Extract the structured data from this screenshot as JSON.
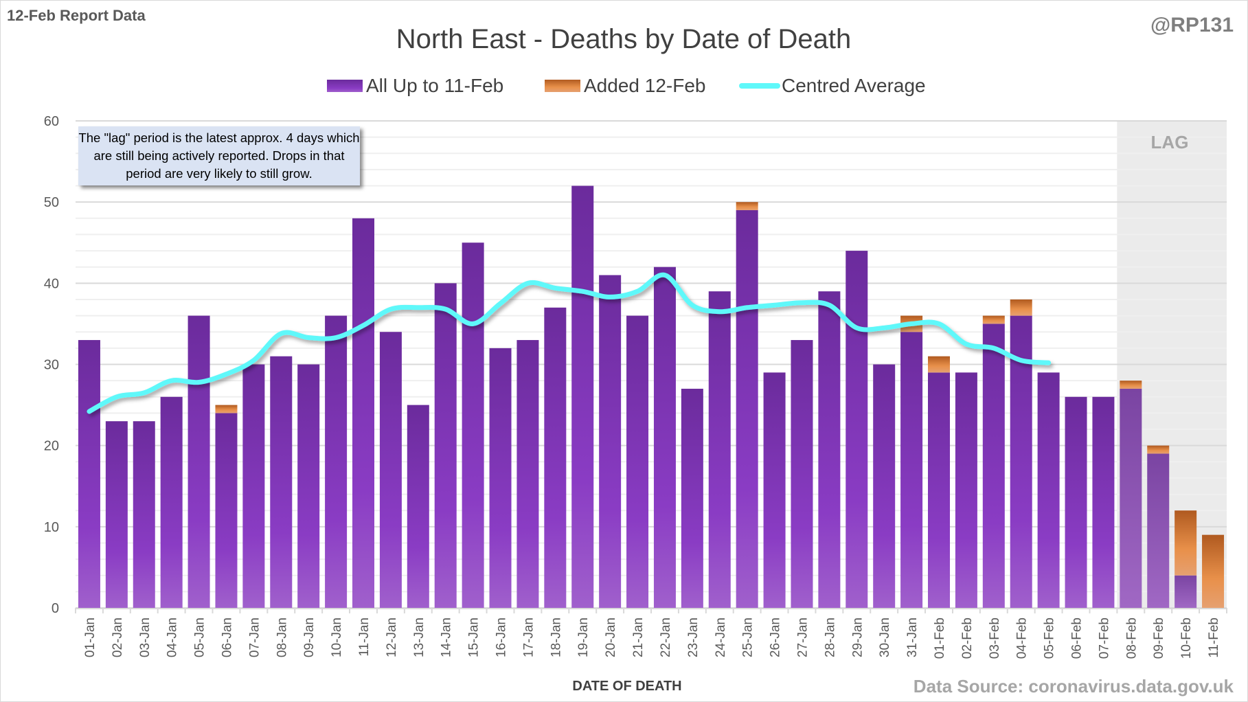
{
  "header_left": "12-Feb Report Data",
  "header_right": "@RP131",
  "footer_source": "Data Source: coronavirus.data.gov.uk",
  "note": "The \"lag\" period is the latest approx. 4 days which are still being actively reported.  Drops in that period are very likely to still grow.",
  "lag_label": "LAG",
  "colors": {
    "all": "#7b2fb5",
    "added": "#e0803a",
    "average": "#5ff8fa",
    "lag_shade": "#ebebeb",
    "note_bg": "#dae3f3"
  },
  "chart_data": {
    "type": "bar",
    "stacked": true,
    "title": "North East - Deaths by Date of Death",
    "xlabel": "DATE OF DEATH",
    "ylabel": "",
    "ylim": [
      0,
      60
    ],
    "yticks": [
      0,
      10,
      20,
      30,
      40,
      50,
      60
    ],
    "grid": true,
    "legend_placement": "top",
    "categories": [
      "01-Jan",
      "02-Jan",
      "03-Jan",
      "04-Jan",
      "05-Jan",
      "06-Jan",
      "07-Jan",
      "08-Jan",
      "09-Jan",
      "10-Jan",
      "11-Jan",
      "12-Jan",
      "13-Jan",
      "14-Jan",
      "15-Jan",
      "16-Jan",
      "17-Jan",
      "18-Jan",
      "19-Jan",
      "20-Jan",
      "21-Jan",
      "22-Jan",
      "23-Jan",
      "24-Jan",
      "25-Jan",
      "26-Jan",
      "27-Jan",
      "28-Jan",
      "29-Jan",
      "30-Jan",
      "31-Jan",
      "01-Feb",
      "02-Feb",
      "03-Feb",
      "04-Feb",
      "05-Feb",
      "06-Feb",
      "07-Feb",
      "08-Feb",
      "09-Feb",
      "10-Feb",
      "11-Feb"
    ],
    "lag_categories": [
      "08-Feb",
      "09-Feb",
      "10-Feb",
      "11-Feb"
    ],
    "series": [
      {
        "name": "All Up to 11-Feb",
        "type": "bar",
        "values": [
          33,
          23,
          23,
          26,
          36,
          24,
          30,
          31,
          30,
          36,
          48,
          34,
          25,
          40,
          45,
          32,
          33,
          37,
          52,
          41,
          36,
          42,
          27,
          39,
          49,
          29,
          33,
          39,
          44,
          30,
          34,
          29,
          29,
          35,
          36,
          29,
          26,
          26,
          27,
          19,
          4,
          0
        ]
      },
      {
        "name": "Added 12-Feb",
        "type": "bar",
        "values": [
          0,
          0,
          0,
          0,
          0,
          1,
          0,
          0,
          0,
          0,
          0,
          0,
          0,
          0,
          0,
          0,
          0,
          0,
          0,
          0,
          0,
          0,
          0,
          0,
          1,
          0,
          0,
          0,
          0,
          0,
          2,
          2,
          0,
          1,
          2,
          0,
          0,
          0,
          1,
          1,
          8,
          9
        ]
      },
      {
        "name": "Centred Average",
        "type": "line",
        "values": [
          24.2,
          26,
          26.5,
          28,
          27.8,
          28.8,
          30.5,
          33.8,
          33.3,
          33.3,
          34.8,
          36.8,
          37,
          36.8,
          35,
          37.5,
          40,
          39.4,
          39,
          38.3,
          39,
          41,
          37.3,
          36.5,
          37,
          37.3,
          37.6,
          37.3,
          34.5,
          34.5,
          35,
          35,
          32.5,
          32,
          30.5,
          30.2,
          null,
          null,
          null,
          null,
          null,
          null
        ]
      }
    ]
  }
}
